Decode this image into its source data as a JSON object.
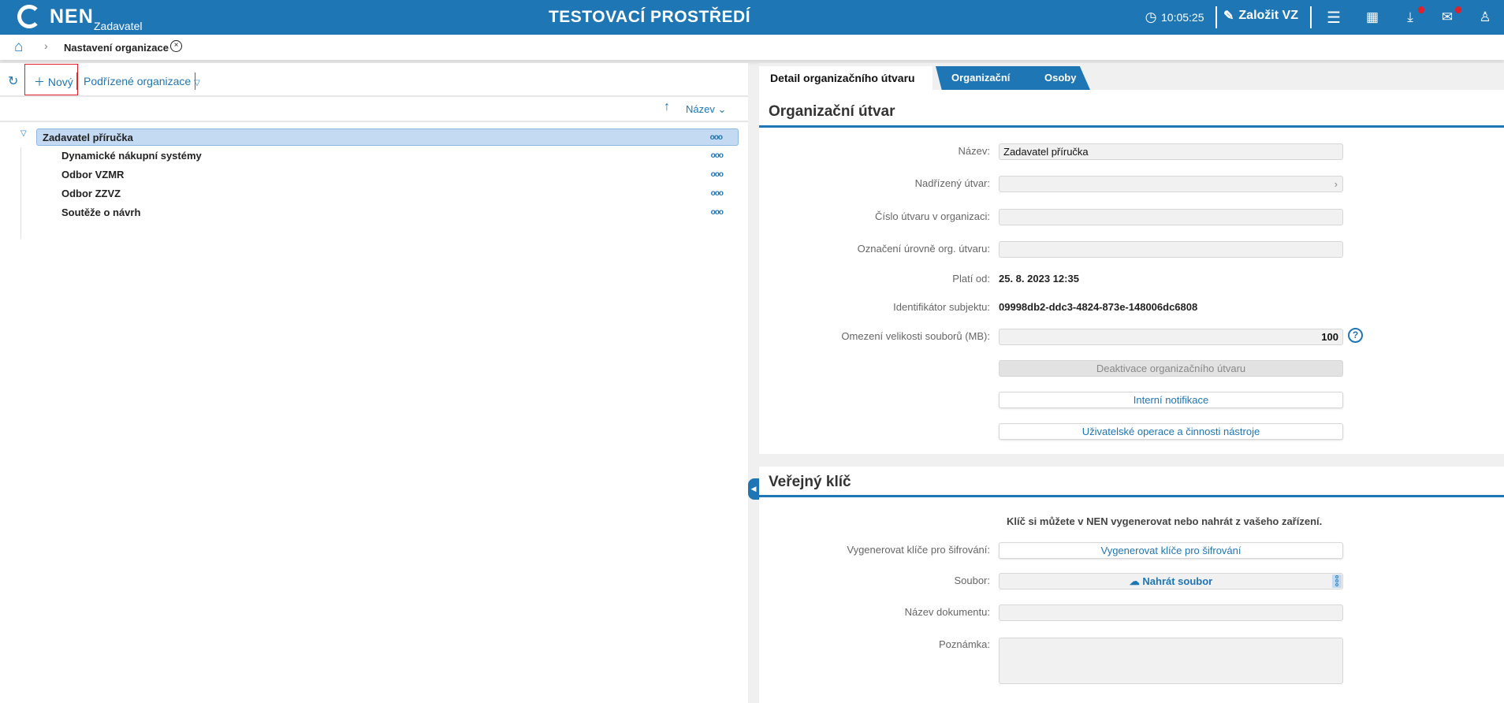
{
  "header": {
    "logo": "NEN",
    "logo_sub": "Zadavatel",
    "environment": "TESTOVACÍ PROSTŘEDÍ",
    "time": "10:05:25",
    "create_label": "Založit VZ",
    "icons": [
      "clock-icon",
      "edit-icon",
      "menu-icon",
      "calendar-icon",
      "download-icon",
      "mail-icon",
      "user-icon"
    ],
    "accent": "#1e76b4",
    "badge_color": "#e0202a"
  },
  "breadcrumb": {
    "current": "Nastavení organizace"
  },
  "left": {
    "toolbar": {
      "new_label": "Nový",
      "sub_orgs_label": "Podřízené organizace"
    },
    "sort": {
      "label": "Název"
    },
    "tree": [
      {
        "label": "Zadavatel příručka",
        "selected": true,
        "expanded": true
      },
      {
        "label": "Dynamické nákupní systémy"
      },
      {
        "label": "Odbor VZMR"
      },
      {
        "label": "Odbor ZZVZ"
      },
      {
        "label": "Soutěže o návrh"
      }
    ]
  },
  "tabs": [
    {
      "label": "Detail organizačního útvaru",
      "active": true
    },
    {
      "label": "Organizační útvary"
    },
    {
      "label": "Osoby"
    }
  ],
  "org": {
    "title": "Organizační útvar",
    "name_label": "Název:",
    "name_value": "Zadavatel příručka",
    "parent_label": "Nadřízený útvar:",
    "number_label": "Číslo útvaru v organizaci:",
    "level_label": "Označení úrovně org. útvaru:",
    "valid_label": "Platí od:",
    "valid_value": "25. 8. 2023 12:35",
    "id_label": "Identifikátor subjektu:",
    "id_value": "09998db2-ddc3-4824-873e-148006dc6808",
    "limit_label": "Omezení velikosti souborů (MB):",
    "limit_value": "100",
    "deactivate_label": "Deaktivace organizačního útvaru",
    "notif_label": "Interní notifikace",
    "ops_label": "Uživatelské operace a činnosti nástroje"
  },
  "key": {
    "title": "Veřejný klíč",
    "info": "Klíč si můžete v NEN vygenerovat nebo nahrát z vašeho zařízení.",
    "gen_label": "Vygenerovat klíče pro šifrování:",
    "gen_button": "Vygenerovat klíče pro šifrování",
    "file_label": "Soubor:",
    "upload_label": "Nahrát soubor",
    "docname_label": "Název dokumentu:",
    "note_label": "Poznámka:"
  }
}
